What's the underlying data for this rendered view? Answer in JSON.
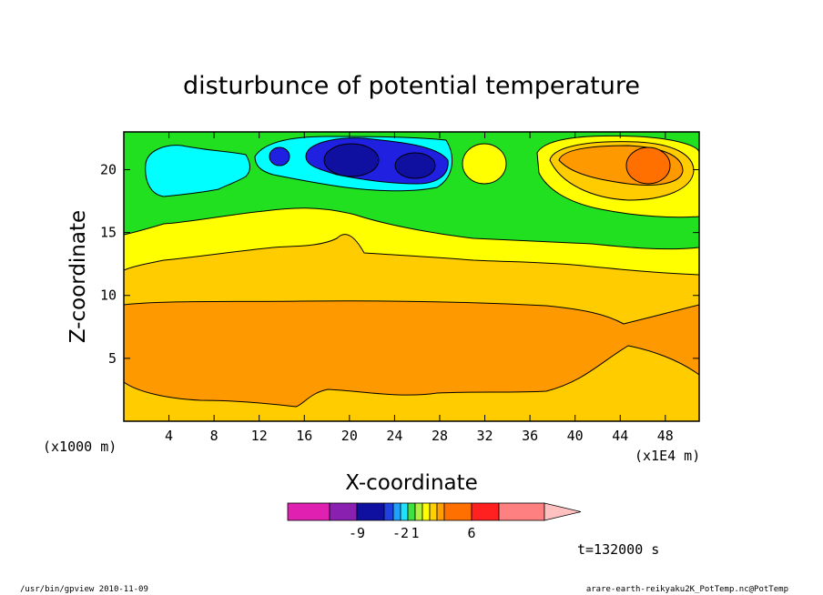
{
  "chart_data": {
    "type": "heatmap",
    "title": "disturbunce of potential temperature",
    "xlabel": "X-coordinate",
    "ylabel": "Z-coordinate",
    "x_units": "(x1E4 m)",
    "y_units": "(x1000 m)",
    "xlim": [
      0,
      51
    ],
    "ylim": [
      0,
      23
    ],
    "x_ticks": [
      4,
      8,
      12,
      16,
      20,
      24,
      28,
      32,
      36,
      40,
      44,
      48
    ],
    "y_ticks": [
      5,
      10,
      15,
      20
    ],
    "colorbar": {
      "colors": [
        "#e020b0",
        "#8a20b0",
        "#1010a0",
        "#2040e0",
        "#20a0ff",
        "#20e0ff",
        "#40e040",
        "#b0f040",
        "#ffff00",
        "#ffd000",
        "#ffa000",
        "#ff7000",
        "#ff2020",
        "#ff8080",
        "#ffc0c0"
      ],
      "tick_labels": [
        "-9",
        "-2",
        "1",
        "6"
      ]
    },
    "regions": [
      {
        "name": "orange-band",
        "color": "#ff9900",
        "level": 3
      },
      {
        "name": "light-orange-band",
        "color": "#ffcc00",
        "level": 2
      },
      {
        "name": "yellow-band",
        "color": "#ffff00",
        "level": 1
      },
      {
        "name": "green-band",
        "color": "#20e020",
        "level": 0
      },
      {
        "name": "cyan-cells",
        "color": "#00ffff",
        "level": -1
      },
      {
        "name": "blue-cells",
        "color": "#2020e0",
        "level": -2
      },
      {
        "name": "dark-blue-cells",
        "color": "#1010a0",
        "level": -3
      },
      {
        "name": "warm-anomaly",
        "color": "#ff9900",
        "level": 3
      },
      {
        "name": "warm-core",
        "color": "#ff7000",
        "level": 4
      }
    ]
  },
  "time_label": "t=132000 s",
  "footer": {
    "left": "/usr/bin/gpview   2010-11-09",
    "right": "arare-earth-reikyaku2K_PotTemp.nc@PotTemp"
  }
}
